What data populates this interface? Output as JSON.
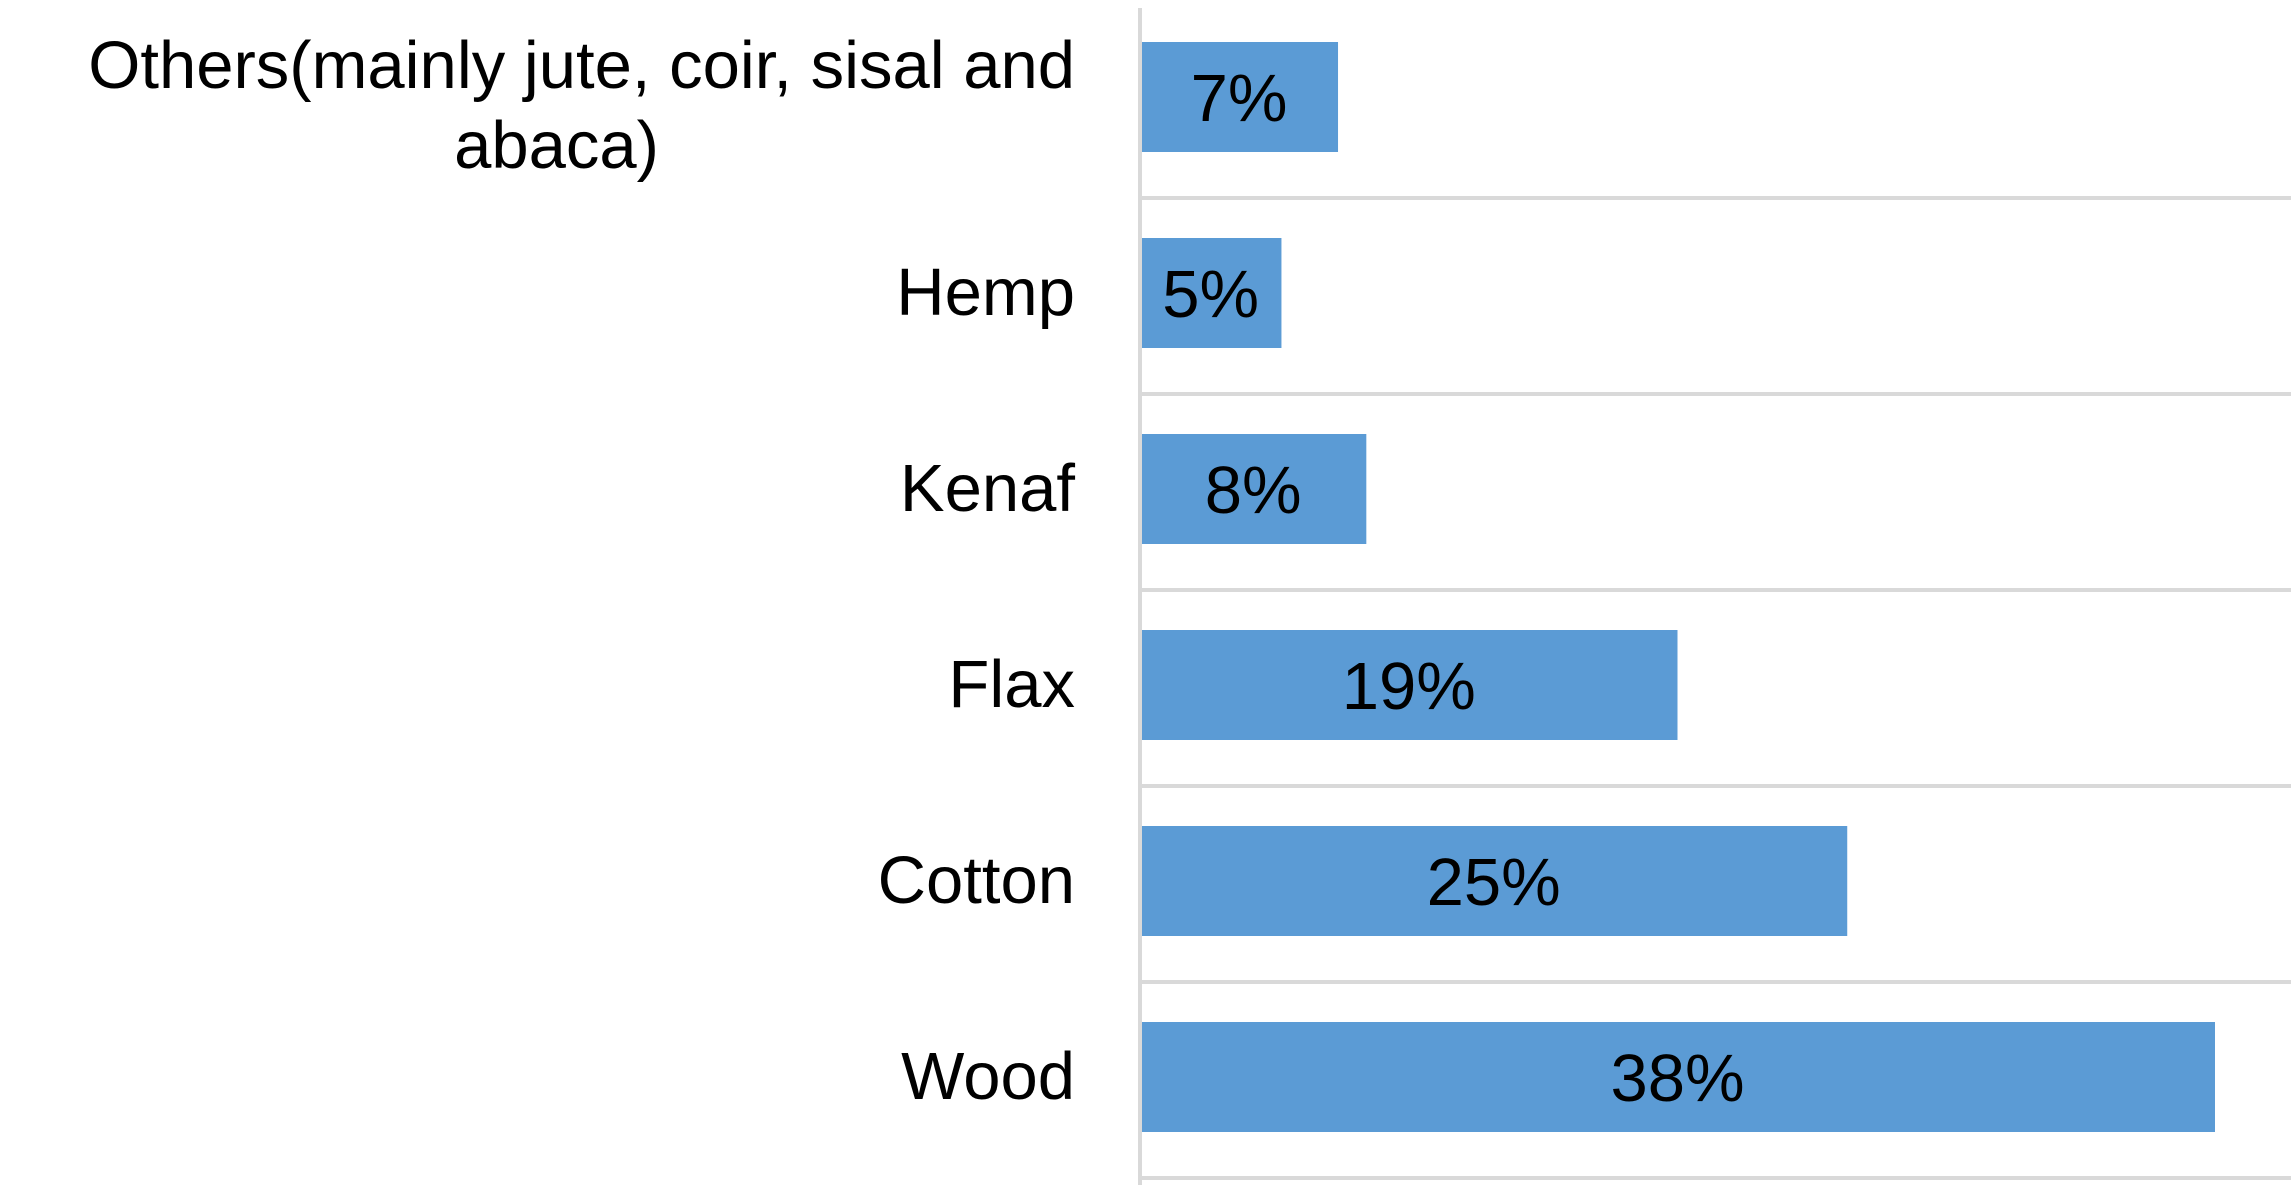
{
  "chart_data": {
    "type": "bar",
    "orientation": "horizontal",
    "categories": [
      "Others(mainly jute, coir, sisal and abaca)",
      "Hemp",
      "Kenaf",
      "Flax",
      "Cotton",
      "Wood"
    ],
    "values": [
      7,
      5,
      8,
      19,
      25,
      38
    ],
    "data_labels": [
      "7%",
      "5%",
      "8%",
      "19%",
      "25%",
      "38%"
    ],
    "unit": "%",
    "xlim": [
      0,
      40
    ],
    "bar_color": "#5b9bd5",
    "grid_color": "#d9d9d9",
    "grid": true,
    "legend": "none",
    "title": "",
    "xlabel": "",
    "ylabel": ""
  }
}
